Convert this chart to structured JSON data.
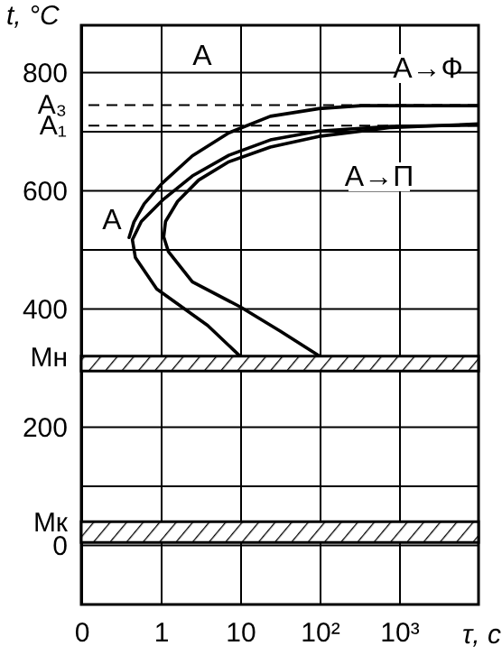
{
  "chart_data": {
    "type": "line",
    "xlabel": "τ, c",
    "ylabel": "t, °C",
    "log": "x",
    "grid": true,
    "line_style": "solid",
    "xlim": [
      0.1,
      10000
    ],
    "xticks": [
      {
        "value": 0.1,
        "label": "0"
      },
      1,
      10,
      {
        "value": 100,
        "label": "10²"
      },
      {
        "value": 1000,
        "label": "10³"
      }
    ],
    "ylim": [
      -100,
      880
    ],
    "yticks": [
      0,
      {
        "value": 100,
        "label": null
      },
      200,
      400,
      {
        "value": 500,
        "label": null
      },
      600,
      {
        "value": 700,
        "label": null
      },
      800,
      {
        "value": 320,
        "label": "Мн"
      },
      {
        "value": 40,
        "label": "Мк"
      }
    ],
    "series": [
      {
        "color": "#000000",
        "x": [
          10000,
          333,
          98,
          24,
          7.2,
          2.5,
          1.05,
          0.62,
          0.46,
          0.4
        ],
        "values": [
          744,
          744,
          739,
          726,
          698,
          659,
          613,
          578,
          547,
          521
        ]
      },
      {
        "color": "#000000",
        "x": [
          10000,
          796,
          98,
          24,
          7.2,
          2.5,
          1.05,
          0.57,
          0.44,
          0.48,
          0.89,
          3.9,
          10
        ],
        "values": [
          711,
          709,
          701,
          686,
          660,
          625,
          584,
          548,
          517,
          487,
          434,
          372,
          320
        ]
      },
      {
        "color": "#000000",
        "x": [
          10000,
          796,
          98,
          24,
          7.2,
          3.0,
          1.63,
          1.15,
          1.09,
          1.25,
          2.5,
          10.2,
          31.6,
          100
        ],
        "values": [
          713,
          707,
          692,
          674,
          649,
          618,
          582,
          548,
          522,
          497,
          446,
          403,
          363,
          320
        ]
      }
    ],
    "ref_lines": [
      {
        "axis": "y",
        "value": 745,
        "label": "А₃",
        "line_style": "dashed"
      },
      {
        "axis": "y",
        "value": 710,
        "label": "А₁",
        "line_style": "dashed"
      }
    ],
    "bands": [
      {
        "axis": "y",
        "from": 295,
        "to": 320
      },
      {
        "axis": "y",
        "from": 5,
        "to": 40
      }
    ],
    "annotations": [
      "А",
      "А",
      "А→Ф",
      "А→П"
    ]
  }
}
